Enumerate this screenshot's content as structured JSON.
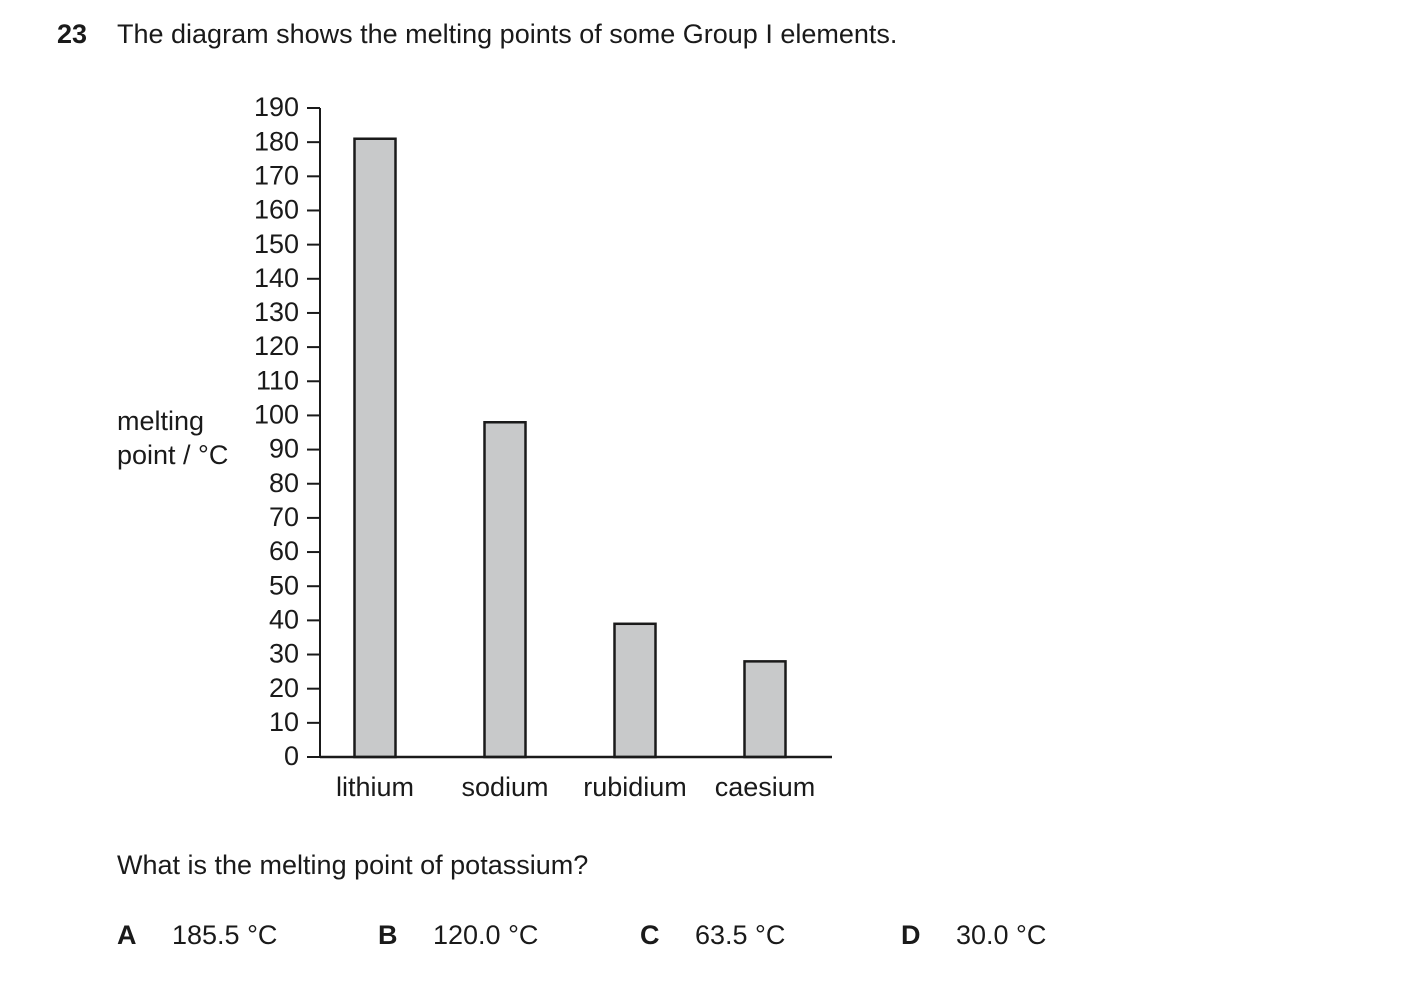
{
  "question": {
    "number": "23",
    "stem": "The diagram shows the melting points of some Group I elements.",
    "prompt": "What is the melting point of potassium?",
    "options": [
      {
        "letter": "A",
        "text": "185.5 °C"
      },
      {
        "letter": "B",
        "text": "120.0 °C"
      },
      {
        "letter": "C",
        "text": "63.5 °C"
      },
      {
        "letter": "D",
        "text": "30.0 °C"
      }
    ]
  },
  "chart_data": {
    "type": "bar",
    "y_label": [
      "melting",
      "point / °C"
    ],
    "categories": [
      "lithium",
      "sodium",
      "rubidium",
      "caesium"
    ],
    "values": [
      181,
      98,
      39,
      28
    ],
    "color": "#c8c9ca",
    "ylim": [
      0,
      190
    ],
    "yticks": [
      0,
      10,
      20,
      30,
      40,
      50,
      60,
      70,
      80,
      90,
      100,
      110,
      120,
      130,
      140,
      150,
      160,
      170,
      180,
      190
    ]
  }
}
